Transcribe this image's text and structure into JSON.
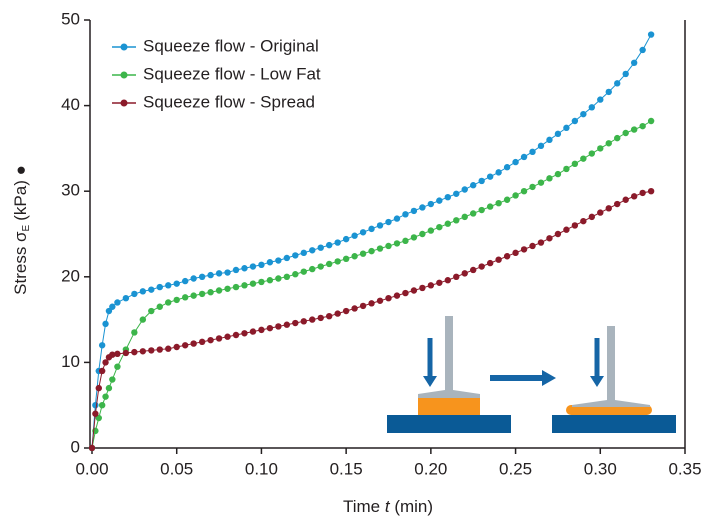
{
  "chart_data": {
    "type": "line",
    "y_label": {
      "text": "Stress σ",
      "sub": "E",
      "unit": "(kPa) ●"
    },
    "x_label": {
      "text": "Time",
      "var": "t",
      "unit": "(min)"
    },
    "x": [
      0,
      0.002,
      0.004,
      0.006,
      0.008,
      0.01,
      0.012,
      0.015,
      0.02,
      0.025,
      0.03,
      0.035,
      0.04,
      0.045,
      0.05,
      0.055,
      0.06,
      0.065,
      0.07,
      0.075,
      0.08,
      0.085,
      0.09,
      0.095,
      0.1,
      0.105,
      0.11,
      0.115,
      0.12,
      0.125,
      0.13,
      0.135,
      0.14,
      0.145,
      0.15,
      0.155,
      0.16,
      0.165,
      0.17,
      0.175,
      0.18,
      0.185,
      0.19,
      0.195,
      0.2,
      0.205,
      0.21,
      0.215,
      0.22,
      0.225,
      0.23,
      0.235,
      0.24,
      0.245,
      0.25,
      0.255,
      0.26,
      0.265,
      0.27,
      0.275,
      0.28,
      0.285,
      0.29,
      0.295,
      0.3,
      0.305,
      0.31,
      0.315,
      0.32,
      0.325,
      0.33
    ],
    "series": [
      {
        "name": "Squeeze flow - Original",
        "color": "#1a93d2",
        "values": [
          0,
          5,
          9,
          12,
          14.5,
          16,
          16.5,
          17,
          17.5,
          18,
          18.3,
          18.5,
          18.8,
          19,
          19.2,
          19.5,
          19.8,
          20,
          20.2,
          20.4,
          20.5,
          20.8,
          21,
          21.2,
          21.4,
          21.7,
          21.9,
          22.2,
          22.5,
          22.8,
          23.1,
          23.4,
          23.7,
          24,
          24.4,
          24.8,
          25.2,
          25.6,
          26,
          26.4,
          26.8,
          27.3,
          27.7,
          28.1,
          28.5,
          28.9,
          29.3,
          29.7,
          30.2,
          30.7,
          31.2,
          31.7,
          32.2,
          32.8,
          33.4,
          34,
          34.6,
          35.3,
          36,
          36.7,
          37.4,
          38.2,
          39,
          39.8,
          40.7,
          41.6,
          42.6,
          43.7,
          45,
          46.5,
          48.3
        ]
      },
      {
        "name": "Squeeze flow - Low Fat",
        "color": "#3cb54a",
        "values": [
          0,
          2,
          3.5,
          5,
          6,
          7,
          8,
          9.5,
          11.5,
          13.5,
          15,
          16,
          16.5,
          17,
          17.3,
          17.6,
          17.8,
          18,
          18.2,
          18.4,
          18.6,
          18.8,
          19,
          19.2,
          19.4,
          19.6,
          19.8,
          20,
          20.3,
          20.6,
          20.9,
          21.2,
          21.5,
          21.8,
          22.1,
          22.4,
          22.7,
          23,
          23.3,
          23.6,
          23.9,
          24.2,
          24.6,
          25,
          25.4,
          25.8,
          26.2,
          26.6,
          27,
          27.4,
          27.8,
          28.2,
          28.6,
          29,
          29.5,
          30,
          30.5,
          31,
          31.5,
          32,
          32.6,
          33.2,
          33.8,
          34.4,
          35,
          35.6,
          36.2,
          36.8,
          37.2,
          37.6,
          38.2
        ]
      },
      {
        "name": "Squeeze flow - Spread",
        "color": "#8b1a2a",
        "values": [
          0,
          4,
          7,
          9,
          10,
          10.6,
          10.9,
          11,
          11.1,
          11.2,
          11.3,
          11.4,
          11.5,
          11.6,
          11.8,
          12,
          12.2,
          12.4,
          12.6,
          12.8,
          13,
          13.2,
          13.4,
          13.6,
          13.8,
          14,
          14.2,
          14.4,
          14.6,
          14.8,
          15,
          15.2,
          15.4,
          15.7,
          16,
          16.3,
          16.6,
          16.9,
          17.2,
          17.5,
          17.8,
          18.1,
          18.4,
          18.7,
          19,
          19.3,
          19.6,
          20,
          20.4,
          20.8,
          21.2,
          21.6,
          22,
          22.4,
          22.8,
          23.2,
          23.6,
          24,
          24.5,
          25,
          25.5,
          26,
          26.5,
          27,
          27.5,
          28,
          28.5,
          29,
          29.4,
          29.8,
          30
        ]
      }
    ],
    "xlim": [
      0,
      0.35
    ],
    "xticks": [
      {
        "value": 0,
        "label": "0.00"
      },
      {
        "value": 0.05,
        "label": "0.05"
      },
      {
        "value": 0.1,
        "label": "0.10"
      },
      {
        "value": 0.15,
        "label": "0.15"
      },
      {
        "value": 0.2,
        "label": "0.20"
      },
      {
        "value": 0.25,
        "label": "0.25"
      },
      {
        "value": 0.3,
        "label": "0.30"
      },
      {
        "value": 0.35,
        "label": "0.35"
      }
    ],
    "ylim": [
      0,
      50
    ],
    "yticks": [
      0,
      10,
      20,
      30,
      40,
      50
    ],
    "grid": false,
    "legend": "top-left"
  }
}
